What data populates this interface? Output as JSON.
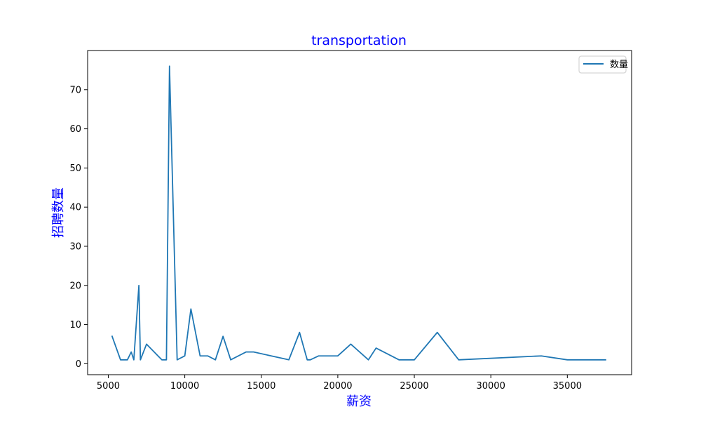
{
  "chart_data": {
    "type": "line",
    "title": "transportation",
    "xlabel": "薪资",
    "ylabel": "招聘数量",
    "xlim": [
      3650,
      39200
    ],
    "ylim": [
      -2.8,
      80.0
    ],
    "xticks": [
      5000,
      10000,
      15000,
      20000,
      25000,
      30000,
      35000
    ],
    "yticks": [
      0,
      10,
      20,
      30,
      40,
      50,
      60,
      70
    ],
    "grid": false,
    "legend_position": "top-right",
    "series": [
      {
        "name": "数量",
        "color": "#1f77b4",
        "x": [
          5250,
          5800,
          6250,
          6500,
          6670,
          7000,
          7100,
          7500,
          8500,
          8800,
          9000,
          9500,
          10000,
          10400,
          11000,
          11500,
          12000,
          12500,
          13000,
          14000,
          14500,
          16800,
          17500,
          18000,
          18200,
          18750,
          20000,
          20850,
          22000,
          22500,
          24000,
          25000,
          26500,
          27900,
          33300,
          35000,
          37500
        ],
        "y": [
          7,
          1,
          1,
          3,
          1,
          20,
          1,
          5,
          1,
          1,
          76,
          1,
          2,
          14,
          2,
          2,
          1,
          7,
          1,
          3,
          3,
          1,
          8,
          1,
          1,
          2,
          2,
          5,
          1,
          4,
          1,
          1,
          8,
          1,
          2,
          1,
          1
        ]
      }
    ]
  },
  "colors": {
    "title": "#0000ff",
    "axis_label": "#0000ff",
    "line": "#1f77b4"
  }
}
